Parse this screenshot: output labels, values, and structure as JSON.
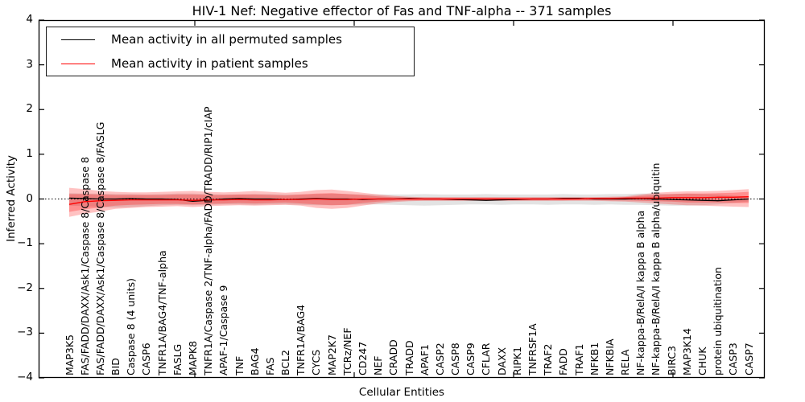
{
  "title": "HIV-1 Nef: Negative effector of Fas and TNF-alpha -- 371 samples",
  "axes": {
    "xlabel": "Cellular Entities",
    "ylabel": "Inferred Activity",
    "ylim": [
      -4,
      4
    ],
    "ytick_labels": [
      "4",
      "3",
      "2",
      "1",
      "0",
      "−1",
      "−2",
      "−3",
      "−4"
    ],
    "ytick_values": [
      4,
      3,
      2,
      1,
      0,
      -1,
      -2,
      -3,
      -4
    ]
  },
  "legend": {
    "entries": [
      {
        "label": "Mean activity in all permuted samples",
        "color": "#000000"
      },
      {
        "label": "Mean activity in patient samples",
        "color": "#ff0000"
      }
    ]
  },
  "chart_data": {
    "type": "line",
    "title": "HIV-1 Nef: Negative effector of Fas and TNF-alpha -- 371 samples",
    "xlabel": "Cellular Entities",
    "ylabel": "Inferred Activity",
    "ylim": [
      -4,
      4
    ],
    "grid": false,
    "zero_line": "dotted",
    "legend_position": "upper left",
    "categories": [
      "MAP3K5",
      "FAS/FADD/DAXX/Ask1/Caspase 8/Caspase 8",
      "FAS/FADD/DAXX/Ask1/Caspase 8/Caspase 8/FASLG",
      "BID",
      "Caspase 8 (4 units)",
      "CASP6",
      "TNFR1A/BAG4/TNF-alpha",
      "FASLG",
      "MAPK8",
      "TNFR1A/Caspase 2/TNF-alpha/FADD/TRADD/RIP1/cIAP",
      "APAF-1/Caspase 9",
      "TNF",
      "BAG4",
      "FAS",
      "BCL2",
      "TNFR1A/BAG4",
      "CYCS",
      "MAP2K7",
      "TCRz/NEF",
      "CD247",
      "NEF",
      "CRADD",
      "TRADD",
      "APAF1",
      "CASP2",
      "CASP8",
      "CASP9",
      "CFLAR",
      "DAXX",
      "RIPK1",
      "TNFRSF1A",
      "TRAF2",
      "FADD",
      "TRAF1",
      "NFKB1",
      "NFKBIA",
      "RELA",
      "NF-kappa-B/RelA/I kappa B alpha",
      "NF-kappa-B/RelA/I kappa B alpha/ubiquitin",
      "BIRC3",
      "MAP3K14",
      "CHUK",
      "protein ubiquitination",
      "CASP3",
      "CASP7"
    ],
    "series": [
      {
        "name": "Mean activity in all permuted samples",
        "color": "#000000",
        "values": [
          0.02,
          0.01,
          0,
          0,
          0.01,
          0,
          0,
          -0.01,
          -0.05,
          -0.03,
          0,
          0.01,
          0,
          0,
          -0.01,
          0,
          0.01,
          0,
          0,
          -0.01,
          0,
          0,
          0.01,
          0,
          0,
          -0.01,
          -0.02,
          -0.03,
          -0.02,
          -0.01,
          0,
          0,
          0.01,
          0.01,
          0,
          0,
          0,
          0.01,
          0,
          -0.01,
          -0.02,
          -0.03,
          -0.04,
          -0.02,
          0
        ]
      },
      {
        "name": "Mean activity in patient samples",
        "color": "#ff0000",
        "values": [
          -0.12,
          -0.06,
          -0.04,
          -0.03,
          -0.02,
          -0.02,
          -0.02,
          -0.02,
          -0.03,
          -0.02,
          -0.02,
          -0.01,
          -0.02,
          -0.02,
          -0.01,
          -0.01,
          0,
          -0.01,
          -0.01,
          0,
          0,
          0,
          0,
          0,
          0,
          0,
          0,
          0,
          0,
          0,
          0,
          0,
          0,
          0,
          0.01,
          0.01,
          0.02,
          0.02,
          0.02,
          0.03,
          0.03,
          0.03,
          0.04,
          0.04,
          0.05
        ]
      }
    ],
    "bands": [
      {
        "name": "permuted-samples-spread",
        "color": "#888888",
        "opacity": 0.24,
        "upper": [
          0.13,
          0.12,
          0.12,
          0.11,
          0.11,
          0.1,
          0.11,
          0.12,
          0.12,
          0.11,
          0.1,
          0.1,
          0.11,
          0.11,
          0.1,
          0.1,
          0.11,
          0.12,
          0.11,
          0.1,
          0.1,
          0.1,
          0.1,
          0.11,
          0.1,
          0.1,
          0.1,
          0.11,
          0.1,
          0.1,
          0.1,
          0.1,
          0.11,
          0.1,
          0.1,
          0.11,
          0.11,
          0.12,
          0.12,
          0.11,
          0.12,
          0.11,
          0.1,
          0.08,
          0.06
        ],
        "lower": [
          -0.15,
          -0.16,
          -0.18,
          -0.19,
          -0.18,
          -0.16,
          -0.14,
          -0.13,
          -0.14,
          -0.13,
          -0.12,
          -0.12,
          -0.13,
          -0.12,
          -0.12,
          -0.13,
          -0.14,
          -0.14,
          -0.13,
          -0.12,
          -0.12,
          -0.13,
          -0.14,
          -0.15,
          -0.14,
          -0.13,
          -0.12,
          -0.12,
          -0.13,
          -0.12,
          -0.12,
          -0.13,
          -0.12,
          -0.12,
          -0.13,
          -0.12,
          -0.13,
          -0.13,
          -0.14,
          -0.15,
          -0.15,
          -0.14,
          -0.12,
          -0.09,
          -0.06
        ]
      },
      {
        "name": "patient-samples-spread-outer",
        "color": "#ff0000",
        "opacity": 0.24,
        "upper": [
          0.25,
          0.22,
          0.18,
          0.16,
          0.15,
          0.15,
          0.16,
          0.17,
          0.18,
          0.16,
          0.15,
          0.16,
          0.18,
          0.16,
          0.14,
          0.16,
          0.2,
          0.21,
          0.18,
          0.14,
          0.1,
          0.07,
          0.05,
          0.04,
          0.04,
          0.04,
          0.04,
          0.04,
          0.04,
          0.04,
          0.04,
          0.04,
          0.04,
          0.04,
          0.04,
          0.05,
          0.06,
          0.1,
          0.14,
          0.16,
          0.17,
          0.17,
          0.18,
          0.2,
          0.22
        ],
        "lower": [
          -0.4,
          -0.33,
          -0.28,
          -0.22,
          -0.2,
          -0.18,
          -0.17,
          -0.16,
          -0.18,
          -0.16,
          -0.15,
          -0.14,
          -0.15,
          -0.14,
          -0.13,
          -0.15,
          -0.2,
          -0.22,
          -0.2,
          -0.15,
          -0.1,
          -0.07,
          -0.05,
          -0.04,
          -0.04,
          -0.04,
          -0.04,
          -0.04,
          -0.04,
          -0.04,
          -0.04,
          -0.04,
          -0.04,
          -0.04,
          -0.04,
          -0.05,
          -0.06,
          -0.08,
          -0.1,
          -0.12,
          -0.14,
          -0.15,
          -0.16,
          -0.17,
          -0.18
        ]
      },
      {
        "name": "patient-samples-spread-inner",
        "color": "#ff0000",
        "opacity": 0.26,
        "upper": [
          0.11,
          0.11,
          0.1,
          0.09,
          0.09,
          0.09,
          0.09,
          0.1,
          0.1,
          0.09,
          0.09,
          0.1,
          0.1,
          0.09,
          0.08,
          0.1,
          0.12,
          0.13,
          0.11,
          0.09,
          0.06,
          0.04,
          0.03,
          0.03,
          0.03,
          0.03,
          0.03,
          0.03,
          0.03,
          0.03,
          0.03,
          0.03,
          0.03,
          0.03,
          0.03,
          0.03,
          0.04,
          0.07,
          0.09,
          0.11,
          0.12,
          0.12,
          0.13,
          0.14,
          0.16
        ],
        "lower": [
          -0.29,
          -0.23,
          -0.19,
          -0.15,
          -0.13,
          -0.12,
          -0.11,
          -0.11,
          -0.12,
          -0.11,
          -0.1,
          -0.09,
          -0.1,
          -0.09,
          -0.08,
          -0.1,
          -0.12,
          -0.14,
          -0.13,
          -0.09,
          -0.06,
          -0.04,
          -0.03,
          -0.03,
          -0.03,
          -0.03,
          -0.03,
          -0.03,
          -0.03,
          -0.03,
          -0.03,
          -0.03,
          -0.03,
          -0.02,
          -0.02,
          -0.03,
          -0.03,
          -0.04,
          -0.05,
          -0.06,
          -0.08,
          -0.08,
          -0.08,
          -0.09,
          -0.09
        ]
      }
    ]
  }
}
